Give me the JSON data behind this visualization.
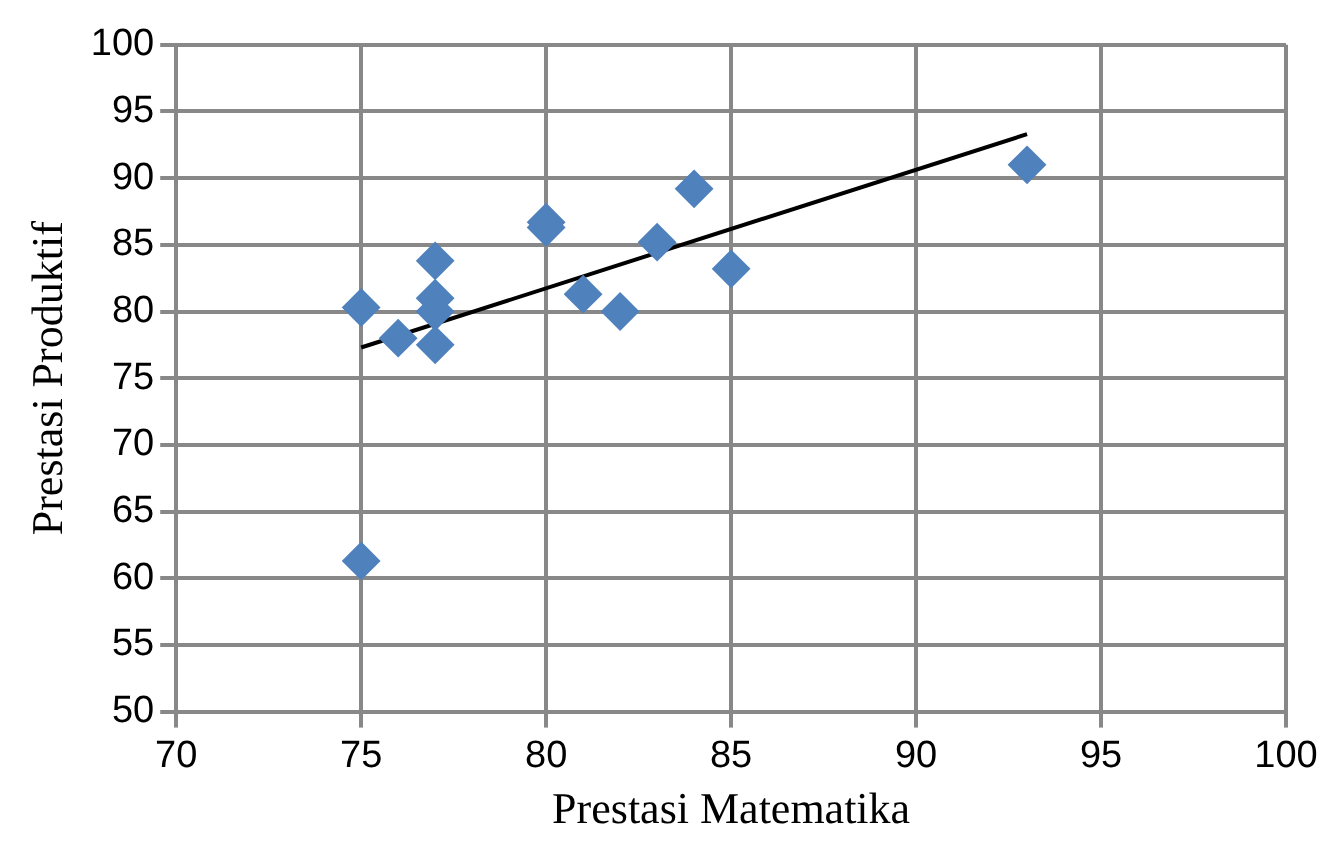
{
  "chart_data": {
    "type": "scatter",
    "xlabel": "Prestasi Matematika",
    "ylabel": "Prestasi Produktif",
    "xlim": [
      70,
      100
    ],
    "xticks": [
      70,
      75,
      80,
      85,
      90,
      95,
      100
    ],
    "ylim": [
      50,
      100
    ],
    "yticks": [
      50,
      55,
      60,
      65,
      70,
      75,
      80,
      85,
      90,
      95,
      100
    ],
    "grid": true,
    "legend": false,
    "marker": "diamond",
    "series": [
      {
        "color": "#4f81bd",
        "x": [
          75,
          75,
          76,
          77,
          77,
          77,
          77,
          80,
          80,
          81,
          82,
          83,
          84,
          85,
          93
        ],
        "values": [
          80.3,
          61.3,
          78,
          83.8,
          81,
          80,
          77.5,
          86.7,
          86.3,
          81.3,
          80,
          85.2,
          89.2,
          83.2,
          91
        ]
      },
      {
        "type": "line",
        "marker": "none",
        "color": "#000000",
        "x": [
          75,
          93
        ],
        "values": [
          77.3,
          93.3
        ]
      }
    ]
  }
}
